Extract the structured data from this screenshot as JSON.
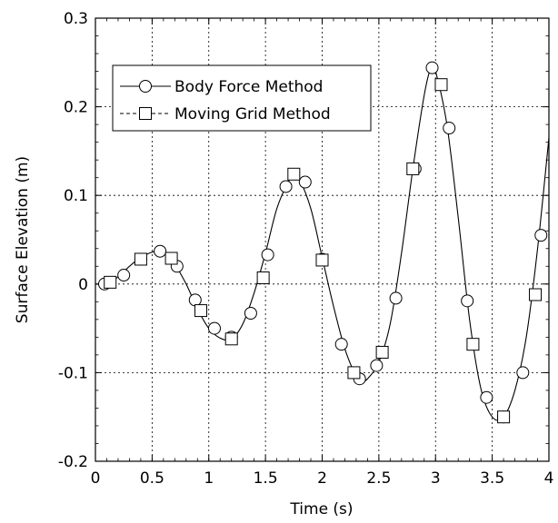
{
  "chart_data": {
    "type": "line",
    "title": "",
    "xlabel": "Time (s)",
    "ylabel": "Surface Elevation (m)",
    "xlim": [
      0,
      4
    ],
    "ylim": [
      -0.2,
      0.3
    ],
    "xticks": [
      0,
      0.5,
      1,
      1.5,
      2,
      2.5,
      3,
      3.5,
      4
    ],
    "xtick_labels": [
      "0",
      "0.5",
      "1",
      "1.5",
      "2",
      "2.5",
      "3",
      "3.5",
      "4"
    ],
    "yticks": [
      -0.2,
      -0.1,
      0,
      0.1,
      0.2,
      0.3
    ],
    "ytick_labels": [
      "-0.2",
      "-0.1",
      "0",
      "0.1",
      "0.2",
      "0.3"
    ],
    "grid": true,
    "legend_position": "top-left",
    "curve": {
      "x": [
        0,
        0.1,
        0.2,
        0.3,
        0.4,
        0.5,
        0.55,
        0.6,
        0.7,
        0.8,
        0.9,
        1.0,
        1.1,
        1.2,
        1.3,
        1.4,
        1.5,
        1.6,
        1.7,
        1.75,
        1.8,
        1.9,
        2.0,
        2.1,
        2.2,
        2.3,
        2.35,
        2.4,
        2.5,
        2.6,
        2.7,
        2.8,
        2.9,
        2.96,
        3.0,
        3.1,
        3.2,
        3.3,
        3.4,
        3.5,
        3.6,
        3.7,
        3.8,
        3.9,
        4.0
      ],
      "y": [
        0,
        0.0,
        0.008,
        0.02,
        0.03,
        0.036,
        0.037,
        0.035,
        0.022,
        0.0,
        -0.028,
        -0.05,
        -0.061,
        -0.062,
        -0.045,
        -0.01,
        0.035,
        0.085,
        0.115,
        0.122,
        0.118,
        0.085,
        0.03,
        -0.025,
        -0.073,
        -0.104,
        -0.109,
        -0.107,
        -0.088,
        -0.045,
        0.035,
        0.13,
        0.213,
        0.244,
        0.24,
        0.18,
        0.075,
        -0.04,
        -0.118,
        -0.15,
        -0.15,
        -0.12,
        -0.06,
        0.04,
        0.165
      ]
    },
    "series": [
      {
        "name": "Body Force Method",
        "marker": "circle",
        "line_style": "solid",
        "x": [
          0.08,
          0.25,
          0.4,
          0.57,
          0.72,
          0.88,
          1.05,
          1.2,
          1.37,
          1.52,
          1.68,
          1.85,
          2.0,
          2.17,
          2.33,
          2.48,
          2.65,
          2.82,
          2.97,
          3.12,
          3.28,
          3.45,
          3.6,
          3.77,
          3.93
        ],
        "y": [
          0.0,
          0.01,
          0.028,
          0.037,
          0.02,
          -0.018,
          -0.05,
          -0.06,
          -0.033,
          0.033,
          0.11,
          0.115,
          0.028,
          -0.068,
          -0.107,
          -0.092,
          -0.016,
          0.13,
          0.244,
          0.176,
          -0.019,
          -0.128,
          -0.15,
          -0.1,
          0.055
        ]
      },
      {
        "name": "Moving Grid Method",
        "marker": "square",
        "line_style": "dashed",
        "x": [
          0.13,
          0.4,
          0.67,
          0.93,
          1.2,
          1.48,
          1.75,
          2.0,
          2.28,
          2.53,
          2.8,
          3.05,
          3.33,
          3.6,
          3.88
        ],
        "y": [
          0.002,
          0.028,
          0.029,
          -0.03,
          -0.062,
          0.007,
          0.124,
          0.027,
          -0.1,
          -0.077,
          0.13,
          0.225,
          -0.068,
          -0.15,
          -0.012
        ]
      }
    ]
  }
}
